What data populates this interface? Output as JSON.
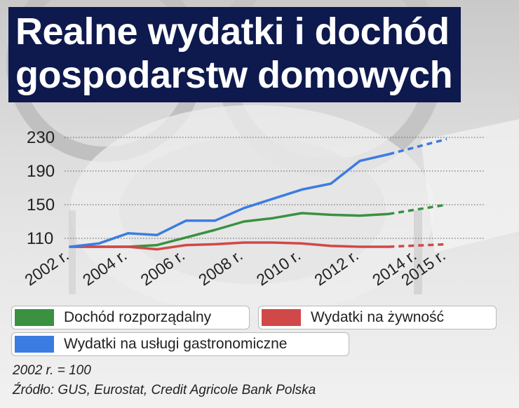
{
  "title": {
    "line1": "Realne wydatki i dochód",
    "line2": "gospodarstw domowych"
  },
  "legend": {
    "items": [
      {
        "label": "Dochód rozporządalny",
        "color": "#3a9140"
      },
      {
        "label": "Wydatki na żywność",
        "color": "#d14848"
      },
      {
        "label": "Wydatki na usługi gastronomiczne",
        "color": "#3b7ce2"
      }
    ]
  },
  "notes": {
    "base": "2002 r. = 100",
    "source": "Źródło: GUS, Eurostat, Credit Agricole Bank Polska"
  },
  "chart_data": {
    "type": "line",
    "title": "Realne wydatki i dochód gospodarstw domowych",
    "x": [
      2002,
      2003,
      2004,
      2005,
      2006,
      2007,
      2008,
      2009,
      2010,
      2011,
      2012,
      2013,
      2015
    ],
    "x_tick_labels": [
      "2002 r.",
      "2004 r.",
      "2006 r.",
      "2008 r.",
      "2010 r.",
      "2012 r.",
      "2014 r.",
      "2015 r."
    ],
    "x_tick_values": [
      2002,
      2004,
      2006,
      2008,
      2010,
      2012,
      2014,
      2015
    ],
    "ylim": [
      100,
      235
    ],
    "y_ticks": [
      110,
      150,
      190,
      230
    ],
    "forecast_from": 2013,
    "grid": true,
    "series": [
      {
        "name": "Dochód rozporządalny",
        "color": "#3a9140",
        "values": [
          100,
          100,
          100,
          102,
          111,
          120,
          130,
          134,
          140,
          138,
          137,
          139,
          150
        ]
      },
      {
        "name": "Wydatki na żywność",
        "color": "#d14848",
        "values": [
          100,
          100,
          100,
          97,
          102,
          103,
          105,
          105,
          104,
          101,
          100,
          100,
          103
        ]
      },
      {
        "name": "Wydatki na usługi gastronomiczne",
        "color": "#3b7ce2",
        "values": [
          100,
          104,
          116,
          114,
          131,
          131,
          146,
          157,
          168,
          175,
          202,
          210,
          228
        ]
      }
    ]
  }
}
